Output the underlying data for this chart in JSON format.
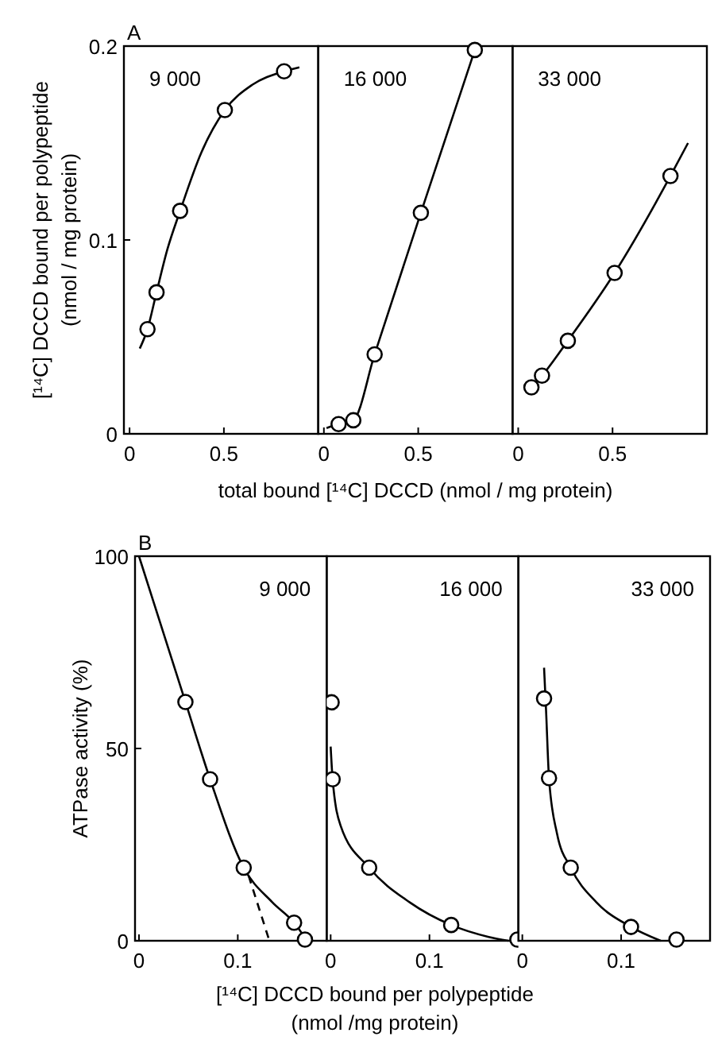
{
  "chart_data": [
    {
      "type": "scatter",
      "title": "9 000",
      "annotations": [
        "A"
      ],
      "ylabel": "[¹⁴C] DCCD bound per polypeptide\n(nmol / mg protein)",
      "xlim": [
        -0.03,
        1.0
      ],
      "ylim": [
        0,
        0.2
      ],
      "xticks": [
        0,
        0.5
      ],
      "yticks": [
        0,
        0.1,
        0.2
      ],
      "series": [
        {
          "type": "line",
          "marker": "none",
          "color": "#000000",
          "x": [
            0.054,
            0.095,
            0.143,
            0.2,
            0.268,
            0.38,
            0.505,
            0.65,
            0.819,
            0.9
          ],
          "values": [
            0.044,
            0.054,
            0.073,
            0.095,
            0.115,
            0.145,
            0.167,
            0.18,
            0.187,
            0.189
          ]
        },
        {
          "marker": "circle",
          "color": "#000000",
          "x": [
            0.095,
            0.143,
            0.268,
            0.505,
            0.819
          ],
          "values": [
            0.054,
            0.073,
            0.115,
            0.167,
            0.187
          ]
        }
      ]
    },
    {
      "type": "scatter",
      "title": "16 000",
      "xlabel": "total bound [¹⁴C] DCCD (nmol / mg protein)",
      "xlim": [
        -0.03,
        1.0
      ],
      "ylim": [
        0,
        0.2
      ],
      "xticks": [
        0,
        0.5
      ],
      "tick_labels": "x",
      "series": [
        {
          "type": "line",
          "marker": "none",
          "color": "#000000",
          "x": [
            0.014,
            0.078,
            0.156,
            0.269,
            0.514,
            0.8
          ],
          "values": [
            0.003,
            0.005,
            0.007,
            0.041,
            0.114,
            0.198
          ]
        },
        {
          "marker": "circle",
          "color": "#000000",
          "x": [
            0.078,
            0.156,
            0.269,
            0.514,
            0.8
          ],
          "values": [
            0.005,
            0.007,
            0.041,
            0.114,
            0.198
          ]
        }
      ]
    },
    {
      "type": "scatter",
      "title": "33 000",
      "xlim": [
        -0.03,
        1.0
      ],
      "ylim": [
        0,
        0.2
      ],
      "xticks": [
        0,
        0.5
      ],
      "tick_labels": "x",
      "series": [
        {
          "type": "line",
          "marker": "none",
          "color": "#000000",
          "x": [
            0.07,
            0.126,
            0.263,
            0.511,
            0.807,
            0.9
          ],
          "values": [
            0.024,
            0.03,
            0.048,
            0.083,
            0.133,
            0.15
          ]
        },
        {
          "marker": "circle",
          "color": "#000000",
          "x": [
            0.07,
            0.126,
            0.263,
            0.511,
            0.807
          ],
          "values": [
            0.024,
            0.03,
            0.048,
            0.083,
            0.133
          ]
        }
      ]
    },
    {
      "type": "scatter",
      "title": "9 000",
      "annotations": [
        "B"
      ],
      "ylabel": "ATPase activity (%)",
      "xlim": [
        -0.004,
        0.19
      ],
      "ylim": [
        0,
        100
      ],
      "xticks": [
        0,
        0.1
      ],
      "yticks": [
        0,
        50,
        100
      ],
      "series": [
        {
          "type": "line",
          "marker": "none",
          "color": "#000000",
          "x": [
            0,
            0.047,
            0.072,
            0.106,
            0.135,
            0.157,
            0.17
          ],
          "values": [
            100,
            62.1,
            42,
            19,
            10,
            4.7,
            0
          ]
        },
        {
          "type": "line",
          "marker": "none",
          "color": "#000000",
          "line_style": "dashed",
          "x": [
            0.111,
            0.132
          ],
          "values": [
            16.9,
            0
          ]
        },
        {
          "marker": "circle",
          "color": "#000000",
          "x": [
            0.047,
            0.072,
            0.106,
            0.157,
            0.168
          ],
          "values": [
            62.1,
            42,
            19,
            4.7,
            0.3
          ]
        }
      ]
    },
    {
      "type": "scatter",
      "title": "16 000",
      "xlabel": "[¹⁴C] DCCD bound per polypeptide\n(nmol /mg protein)",
      "xlim": [
        -0.004,
        0.19
      ],
      "ylim": [
        0,
        100
      ],
      "xticks": [
        0,
        0.1
      ],
      "tick_labels": "x",
      "series": [
        {
          "type": "line",
          "marker": "none",
          "color": "#000000",
          "x": [
            0,
            0.002,
            0.01,
            0.039,
            0.08,
            0.122,
            0.16,
            0.18
          ],
          "values": [
            50.5,
            42,
            30,
            19,
            10,
            4.1,
            1,
            0
          ]
        },
        {
          "marker": "circle",
          "color": "#000000",
          "x": [
            0.001,
            0.002,
            0.039,
            0.122,
            0.189
          ],
          "values": [
            62,
            42,
            19,
            4.1,
            0.3
          ]
        }
      ]
    },
    {
      "type": "scatter",
      "title": "33 000",
      "xlim": [
        -0.004,
        0.19
      ],
      "ylim": [
        0,
        100
      ],
      "xticks": [
        0,
        0.1
      ],
      "tick_labels": "x",
      "series": [
        {
          "type": "line",
          "marker": "none",
          "color": "#000000",
          "x": [
            0.022,
            0.024,
            0.027,
            0.035,
            0.049,
            0.075,
            0.11,
            0.14
          ],
          "values": [
            71,
            60,
            42.3,
            28,
            19,
            10,
            3.6,
            0
          ]
        },
        {
          "marker": "circle",
          "color": "#000000",
          "x": [
            0.022,
            0.027,
            0.049,
            0.11,
            0.156
          ],
          "values": [
            63,
            42.3,
            19,
            3.6,
            0.3
          ]
        }
      ]
    }
  ]
}
